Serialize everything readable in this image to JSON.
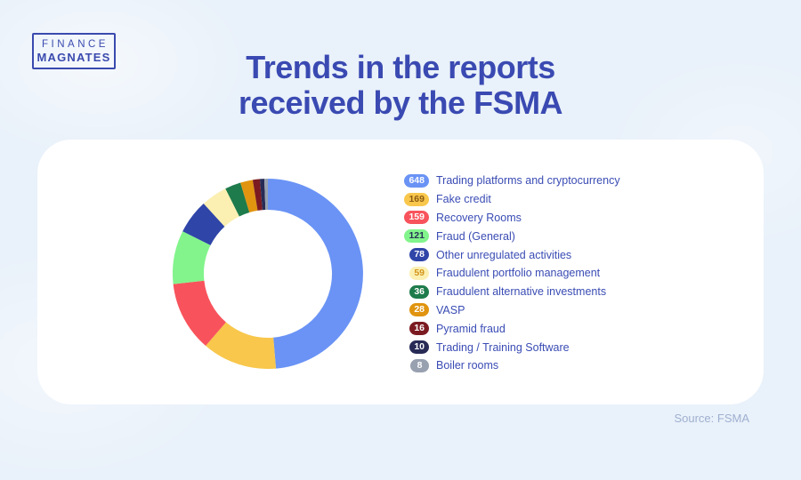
{
  "page": {
    "background_color": "#E9F1FA",
    "card_color": "#FFFFFF",
    "accent_color": "#3A4AB2"
  },
  "logo": {
    "line1": "FINANCE",
    "line2": "MAGNATES",
    "color": "#3A4AAE"
  },
  "title": {
    "line1": "Trends in the reports",
    "line2": "received by the FSMA",
    "color": "#3A4AB2"
  },
  "source": {
    "label": "Source: FSMA",
    "color": "#9FB0D0"
  },
  "chart_data": {
    "type": "pie",
    "variant": "donut",
    "title": "Trends in the reports received by the FSMA",
    "start_angle_deg": 0,
    "direction": "clockwise",
    "total": 1332,
    "legend_position": "right",
    "outer_radius": 107,
    "inner_radius": 72,
    "items": [
      {
        "label": "Trading platforms and cryptocurrency",
        "value": 648,
        "color": "#6A93F5",
        "badge_text_color": "#FFFFFF"
      },
      {
        "label": "Fake credit",
        "value": 169,
        "color": "#F8C74B",
        "badge_text_color": "#8C5A12"
      },
      {
        "label": "Recovery Rooms",
        "value": 159,
        "color": "#F8535C",
        "badge_text_color": "#FFFFFF"
      },
      {
        "label": "Fraud (General)",
        "value": 121,
        "color": "#82F48B",
        "badge_text_color": "#273058"
      },
      {
        "label": "Other unregulated activities",
        "value": 78,
        "color": "#2F45A8",
        "badge_text_color": "#FFFFFF"
      },
      {
        "label": "Fraudulent portfolio management",
        "value": 59,
        "color": "#FBF0B2",
        "badge_text_color": "#D3941B"
      },
      {
        "label": "Fraudulent alternative investments",
        "value": 36,
        "color": "#1E7B4B",
        "badge_text_color": "#FFFFFF"
      },
      {
        "label": "VASP",
        "value": 28,
        "color": "#E0940F",
        "badge_text_color": "#FFFFFF"
      },
      {
        "label": "Pyramid fraud",
        "value": 16,
        "color": "#7B1B21",
        "badge_text_color": "#FFFFFF"
      },
      {
        "label": "Trading / Training Software",
        "value": 10,
        "color": "#272B55",
        "badge_text_color": "#FFFFFF"
      },
      {
        "label": "Boiler rooms",
        "value": 8,
        "color": "#98A1B0",
        "badge_text_color": "#FFFFFF"
      }
    ]
  }
}
